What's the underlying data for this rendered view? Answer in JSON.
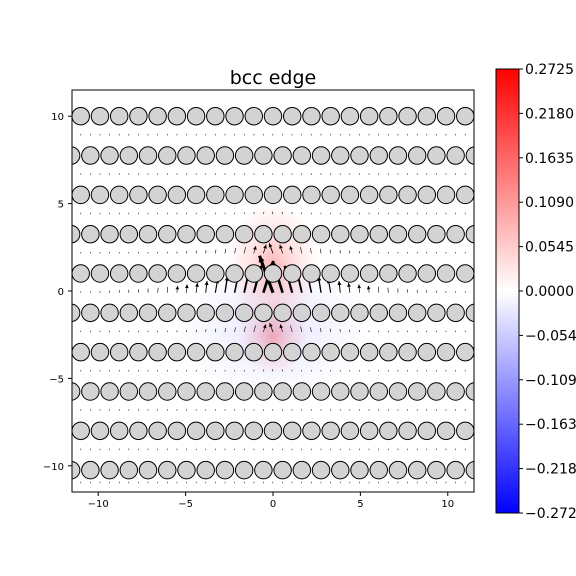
{
  "chart_data": {
    "type": "heatmap",
    "title": "bcc edge",
    "xlabel": "",
    "ylabel": "",
    "xlim": [
      -11.5,
      11.5
    ],
    "ylim": [
      -11.5,
      11.5
    ],
    "x_ticks": [
      -10,
      -5,
      0,
      5,
      10
    ],
    "y_ticks": [
      -10,
      -5,
      0,
      5,
      10
    ],
    "x_tick_labels": [
      "−10",
      "−5",
      "0",
      "5",
      "10"
    ],
    "y_tick_labels": [
      "−10",
      "−5",
      "0",
      "5",
      "10"
    ],
    "grid": false,
    "colormap": "bwr",
    "colors": {
      "min": "#0000ff",
      "mid": "#ffffff",
      "max": "#ff0000"
    },
    "colorbar": {
      "range": [
        -0.2725,
        0.2725
      ],
      "ticks": [
        0.2725,
        0.218,
        0.1635,
        0.109,
        0.0545,
        0.0,
        -0.0545,
        -0.109,
        -0.1635,
        -0.218,
        -0.2725
      ],
      "tick_labels": [
        "0.2725",
        "0.2180",
        "0.1635",
        "0.1090",
        "0.0545",
        "0.0000",
        "−0.0545",
        "−0.1090",
        "−0.1635",
        "−0.2180",
        "−0.2725"
      ]
    },
    "atom_rows_y": [
      10.0,
      7.75,
      5.5,
      3.25,
      1.0,
      -1.25,
      -3.5,
      -5.75,
      -8.0,
      -10.25
    ],
    "atom_spacing_x": 1.1,
    "atom_radius": 0.5,
    "atom_color": "#d3d3d3",
    "dislocation_core": {
      "x": 0.0,
      "y": 0.0
    },
    "arrow_rows_y": [
      8.9,
      6.65,
      4.4,
      2.15,
      -0.1,
      -2.35,
      -4.6,
      -6.85,
      -9.1,
      -11.0
    ],
    "arrow_color": "#000000"
  }
}
